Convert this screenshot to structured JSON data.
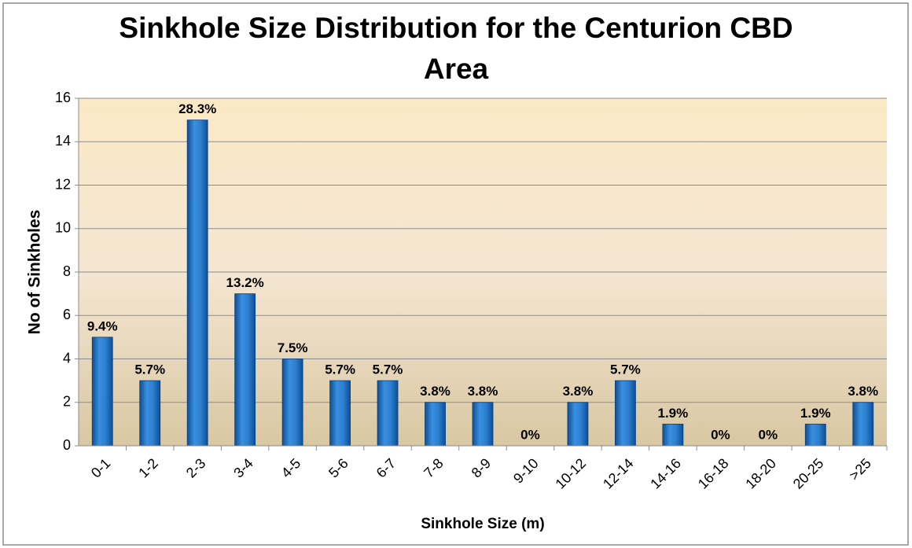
{
  "chart_data": {
    "type": "bar",
    "title": "Sinkhole Size Distribution for the Centurion CBD Area",
    "x_label": "Sinkhole Size (m)",
    "y_label": "No of Sinkholes",
    "categories": [
      "0-1",
      "1-2",
      "2-3",
      "3-4",
      "4-5",
      "5-6",
      "6-7",
      "7-8",
      "8-9",
      "9-10",
      "10-12",
      "12-14",
      "14-16",
      "16-18",
      "18-20",
      "20-25",
      ">25"
    ],
    "values": [
      5,
      3,
      15,
      7,
      4,
      3,
      3,
      2,
      2,
      0,
      2,
      3,
      1,
      0,
      0,
      1,
      2
    ],
    "data_labels": [
      "9.4%",
      "5.7%",
      "28.3%",
      "13.2%",
      "7.5%",
      "5.7%",
      "5.7%",
      "3.8%",
      "3.8%",
      "0%",
      "3.8%",
      "5.7%",
      "1.9%",
      "0%",
      "0%",
      "1.9%",
      "3.8%"
    ],
    "color": "#1f6fc0",
    "ylim": [
      0,
      16
    ],
    "yticks": [
      0,
      2,
      4,
      6,
      8,
      10,
      12,
      14,
      16
    ],
    "grid": true
  }
}
